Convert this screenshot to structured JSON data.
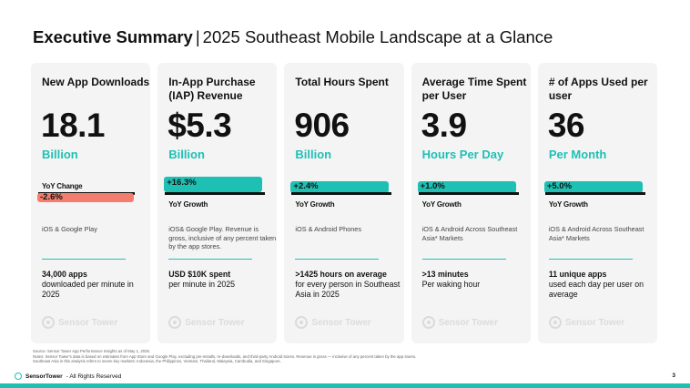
{
  "header": {
    "title_bold": "Executive Summary",
    "separator": "|",
    "title_rest": "2025 Southeast Mobile Landscape at a Glance"
  },
  "cards": [
    {
      "label": "New App Downloads",
      "value": "18.1",
      "unit": "Billion",
      "yoy_label": "YoY Change",
      "yoy_value": "-2.6%",
      "yoy_direction": "negative",
      "description": "iOS & Google Play",
      "detail_strong": "34,000 apps",
      "detail_rest": "downloaded per minute in 2025",
      "watermark": "Sensor Tower"
    },
    {
      "label": "In-App Purchase (IAP) Revenue",
      "value": "$5.3",
      "unit": "Billion",
      "yoy_label": "YoY Growth",
      "yoy_value": "+16.3%",
      "yoy_direction": "positive",
      "description": "iOS& Google Play. Revenue is gross, inclusive of any percent taken by the app stores.",
      "detail_strong": "USD $10K spent",
      "detail_rest": "per minute in 2025",
      "watermark": "Sensor Tower"
    },
    {
      "label": "Total Hours Spent",
      "value": "906",
      "unit": "Billion",
      "yoy_label": "YoY Growth",
      "yoy_value": "+2.4%",
      "yoy_direction": "positive",
      "description": "iOS & Android Phones",
      "detail_strong": ">1425 hours on average",
      "detail_rest": "for every person in Southeast Asia in 2025",
      "watermark": "Sensor Tower"
    },
    {
      "label": "Average Time Spent per User",
      "value": "3.9",
      "unit": "Hours Per Day",
      "yoy_label": "YoY Growth",
      "yoy_value": "+1.0%",
      "yoy_direction": "positive",
      "description": "iOS & Android Across Southeast Asia* Markets",
      "detail_strong": ">13 minutes",
      "detail_rest": "Per waking hour",
      "watermark": "Sensor Tower"
    },
    {
      "label": "# of Apps Used per user",
      "value": "36",
      "unit": "Per Month",
      "yoy_label": "YoY Growth",
      "yoy_value": "+5.0%",
      "yoy_direction": "positive",
      "description": "iOS & Android Across Southeast Asia* Markets",
      "detail_strong": "11 unique apps",
      "detail_rest": "used each day per user on average",
      "watermark": "Sensor Tower"
    }
  ],
  "notes": [
    "Source: Sensor Tower App Performance Insights as of May 1, 2026.",
    "Notes: Sensor Tower's data is based on estimates from App Store and Google Play, excluding pre-installs, re-downloads, and third-party Android stores. Revenue is gross — inclusive of any percent taken by the app stores.",
    "Southeast Asia in this analysis refers to seven key markets: Indonesia, the Philippines, Vietnam, Thailand, Malaysia, Cambodia, and Singapore."
  ],
  "footer": {
    "brand": "SensorTower",
    "rights": "- All Rights Reserved",
    "page_number": "3"
  },
  "colors": {
    "accent": "#1fc0b4",
    "negative": "#f47e6e",
    "card_bg": "#f4f4f4"
  }
}
